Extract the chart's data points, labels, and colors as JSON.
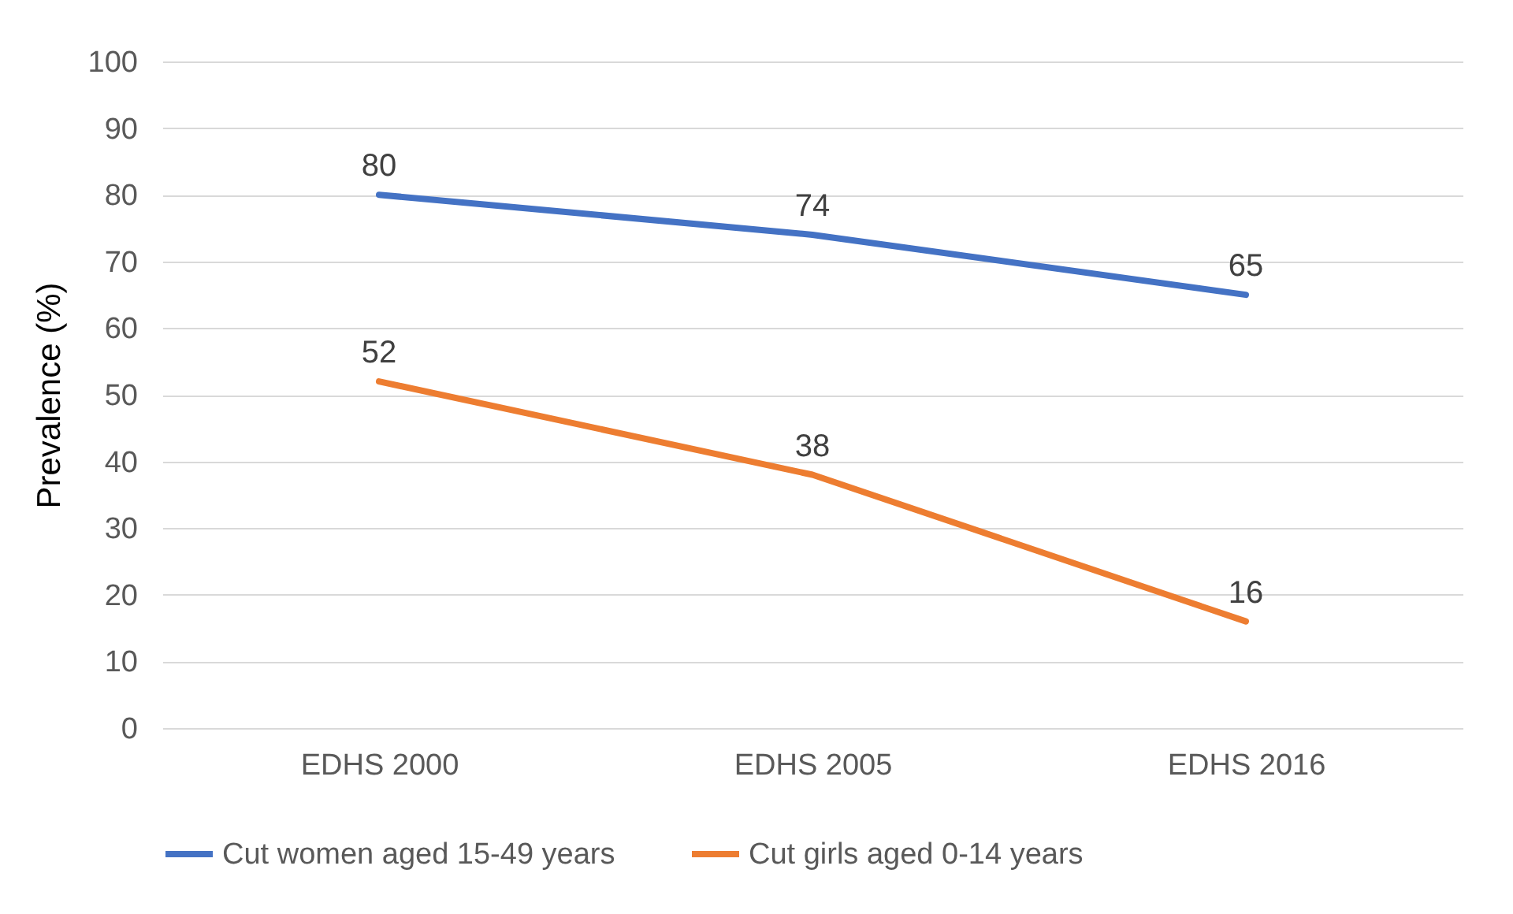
{
  "chart_data": {
    "type": "line",
    "ylabel": "Prevalence (%)",
    "categories": [
      "EDHS 2000",
      "EDHS 2005",
      "EDHS 2016"
    ],
    "series": [
      {
        "name": "Cut women aged 15-49 years",
        "color": "#4472c4",
        "values": [
          80,
          74,
          65
        ]
      },
      {
        "name": "Cut girls aged 0-14 years",
        "color": "#ed7d31",
        "values": [
          52,
          38,
          16
        ]
      }
    ],
    "ylim": [
      0,
      100
    ],
    "yticks": [
      0,
      10,
      20,
      30,
      40,
      50,
      60,
      70,
      80,
      90,
      100
    ],
    "grid": "y",
    "legend": "bottom",
    "data_labels": true,
    "marker": "none",
    "line_style": "solid"
  }
}
